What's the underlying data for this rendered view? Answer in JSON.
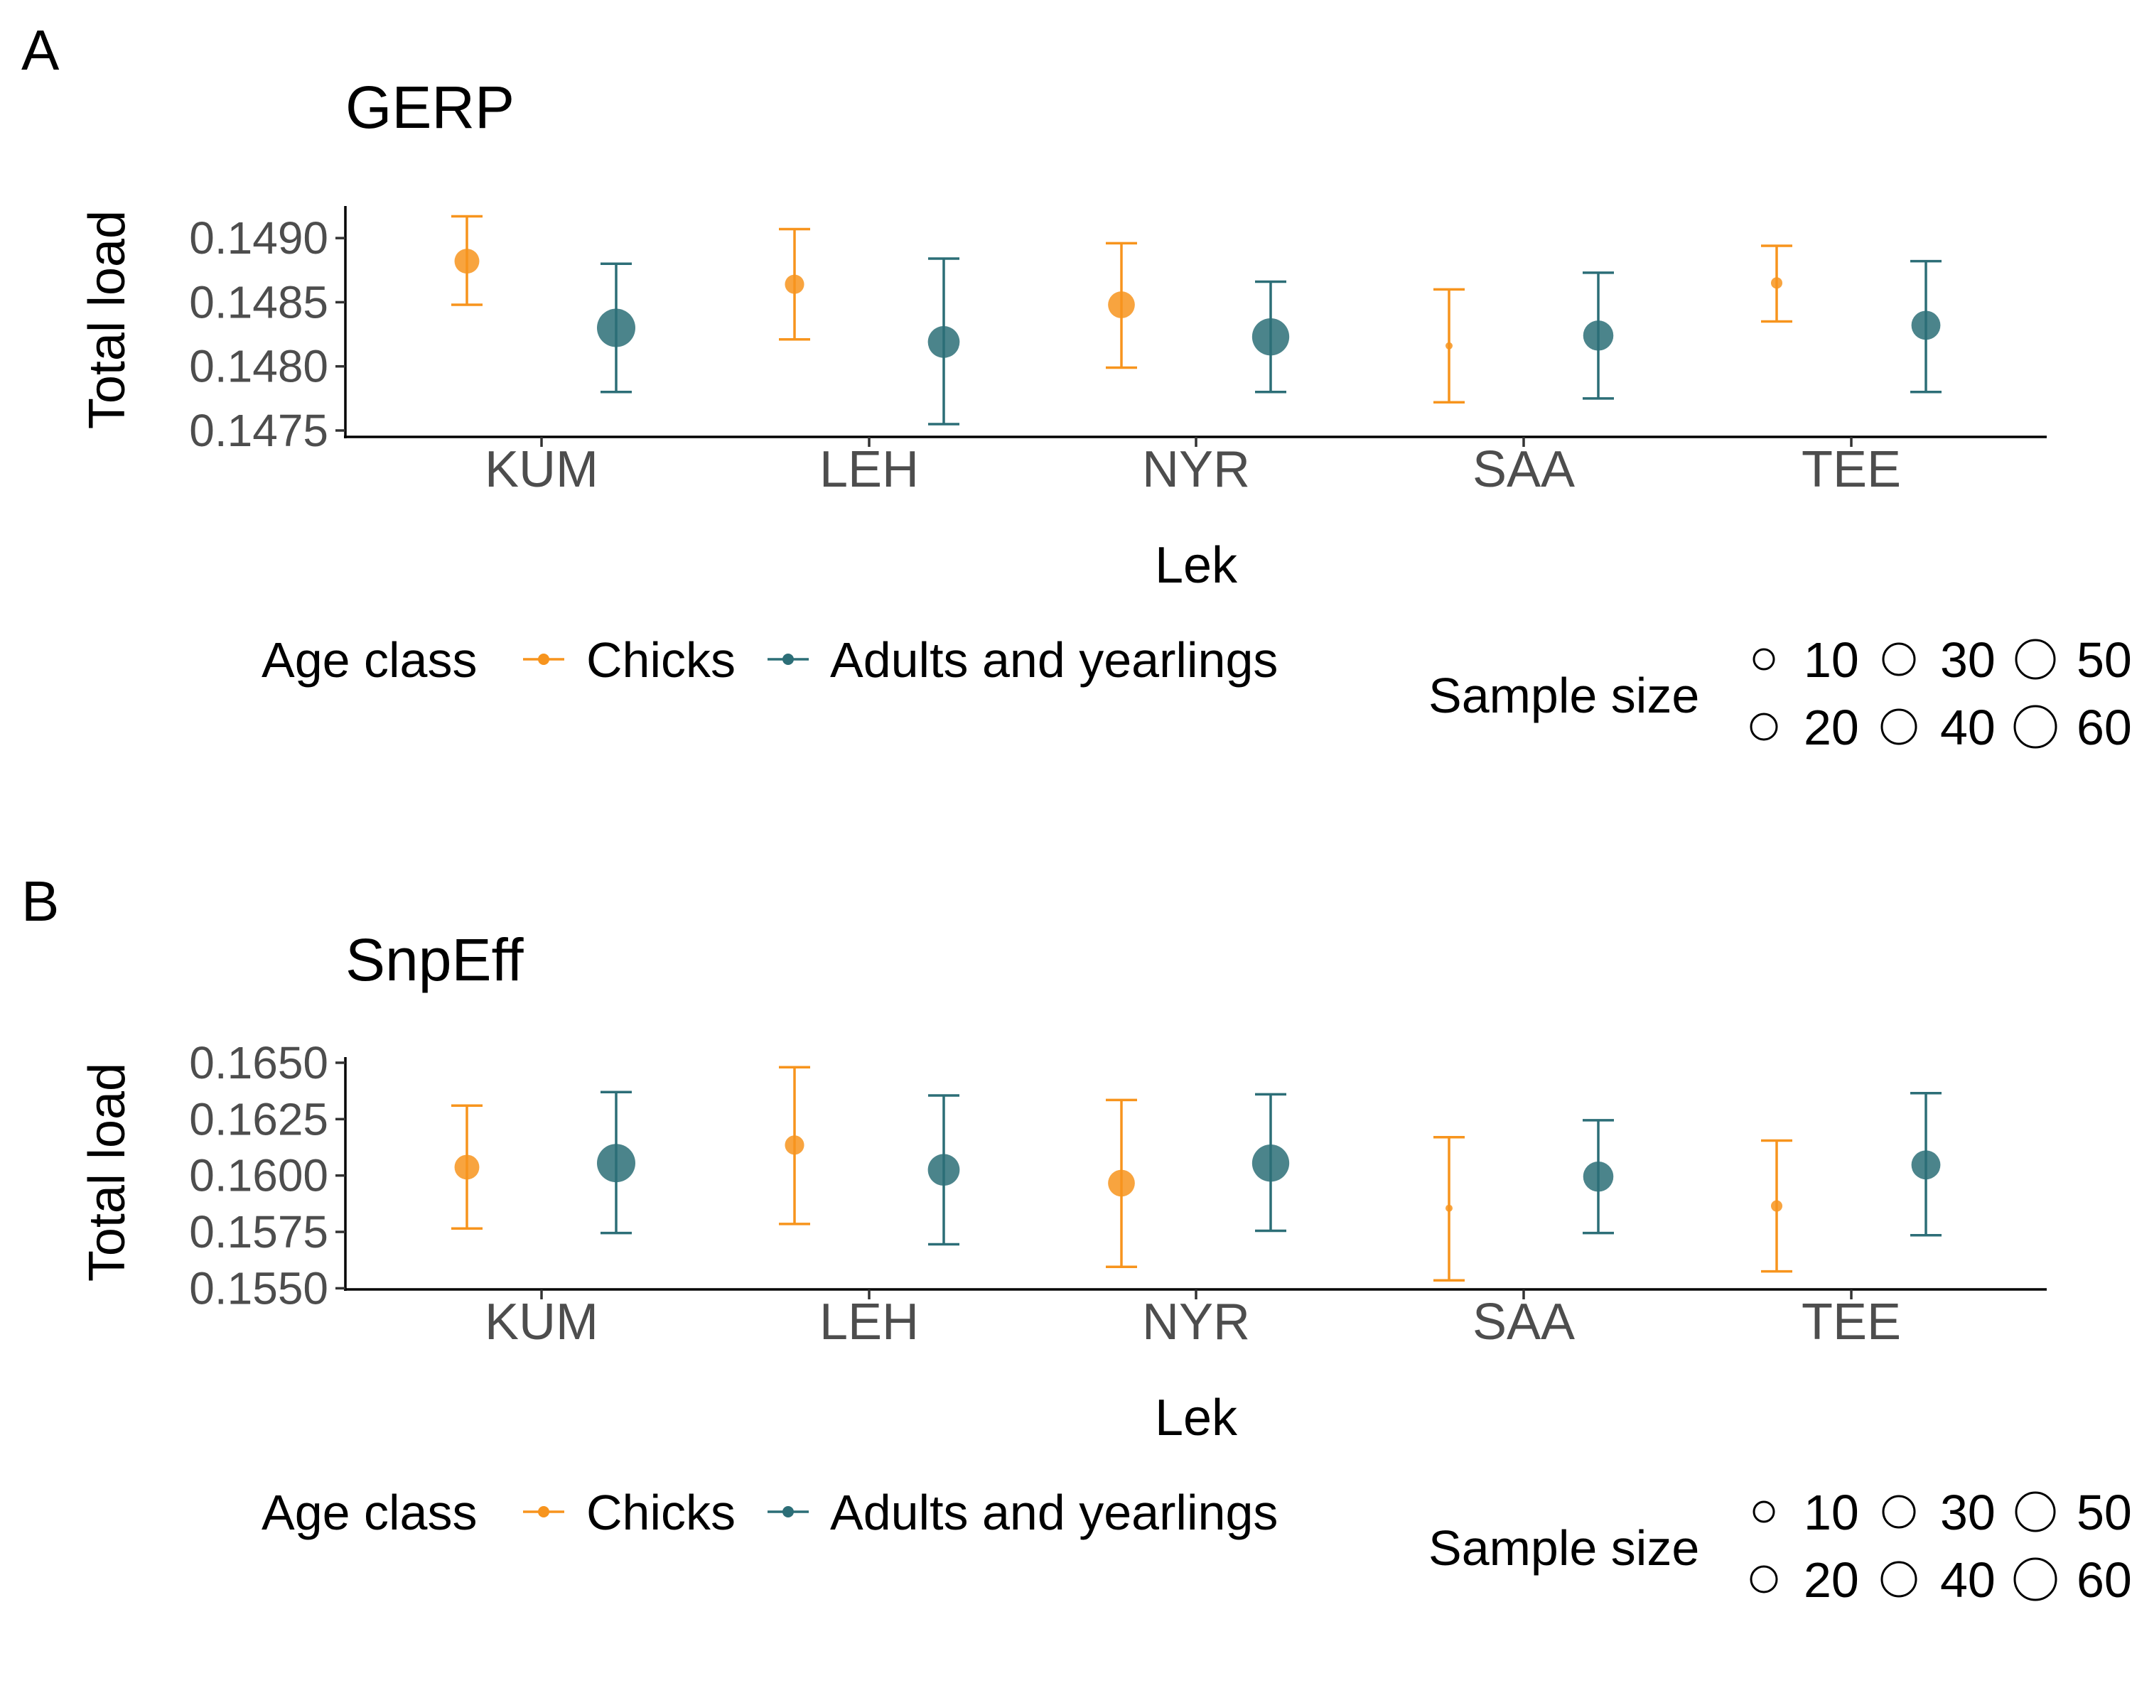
{
  "colors": {
    "chicks": "#F7941D",
    "adults": "#2C6E77"
  },
  "chart_data": [
    {
      "panel": "A",
      "type": "scatter",
      "title": "GERP",
      "xlabel": "Lek",
      "ylabel": "Total load",
      "categories": [
        "KUM",
        "LEH",
        "NYR",
        "SAA",
        "TEE"
      ],
      "ylim": [
        0.14745,
        0.14925
      ],
      "yticks": [
        0.1475,
        0.148,
        0.1485,
        0.149
      ],
      "ytick_labels": [
        "0.1475",
        "0.1480",
        "0.1485",
        "0.1490"
      ],
      "grid": false,
      "legend": {
        "position": "bottom",
        "color_title": "Age class",
        "size_title": "Sample size",
        "size_labels": [
          "10",
          "20",
          "30",
          "40",
          "50",
          "60"
        ],
        "size_values": [
          10,
          20,
          30,
          40,
          50,
          60
        ]
      },
      "series": [
        {
          "name": "Chicks",
          "color_key": "chicks",
          "points": [
            {
              "x": "KUM",
              "y": 0.14882,
              "lower": 0.14848,
              "upper": 0.14917,
              "n": 26
            },
            {
              "x": "LEH",
              "y": 0.14864,
              "lower": 0.14821,
              "upper": 0.14907,
              "n": 17
            },
            {
              "x": "NYR",
              "y": 0.14848,
              "lower": 0.14799,
              "upper": 0.14896,
              "n": 30
            },
            {
              "x": "SAA",
              "y": 0.14816,
              "lower": 0.14772,
              "upper": 0.1486,
              "n": 9
            },
            {
              "x": "TEE",
              "y": 0.14865,
              "lower": 0.14835,
              "upper": 0.14894,
              "n": 10
            }
          ]
        },
        {
          "name": "Adults and yearlings",
          "color_key": "adults",
          "points": [
            {
              "x": "KUM",
              "y": 0.1483,
              "lower": 0.1478,
              "upper": 0.1488,
              "n": 62
            },
            {
              "x": "LEH",
              "y": 0.14819,
              "lower": 0.14755,
              "upper": 0.14884,
              "n": 42
            },
            {
              "x": "NYR",
              "y": 0.14823,
              "lower": 0.1478,
              "upper": 0.14866,
              "n": 58
            },
            {
              "x": "SAA",
              "y": 0.14824,
              "lower": 0.14775,
              "upper": 0.14873,
              "n": 38
            },
            {
              "x": "TEE",
              "y": 0.14832,
              "lower": 0.1478,
              "upper": 0.14882,
              "n": 35
            }
          ]
        }
      ]
    },
    {
      "panel": "B",
      "type": "scatter",
      "title": "SnpEff",
      "xlabel": "Lek",
      "ylabel": "Total load",
      "categories": [
        "KUM",
        "LEH",
        "NYR",
        "SAA",
        "TEE"
      ],
      "ylim": [
        0.15495,
        0.16525
      ],
      "yticks": [
        0.155,
        0.1575,
        0.16,
        0.1625,
        0.165
      ],
      "ytick_labels": [
        "0.1550",
        "0.1575",
        "0.1600",
        "0.1625",
        "0.1650"
      ],
      "grid": false,
      "legend": {
        "position": "bottom",
        "color_title": "Age class",
        "size_title": "Sample size",
        "size_labels": [
          "10",
          "20",
          "30",
          "40",
          "50",
          "60"
        ],
        "size_values": [
          10,
          20,
          30,
          40,
          50,
          60
        ]
      },
      "series": [
        {
          "name": "Chicks",
          "color_key": "chicks",
          "points": [
            {
              "x": "KUM",
              "y": 0.16037,
              "lower": 0.15765,
              "upper": 0.1631,
              "n": 26
            },
            {
              "x": "LEH",
              "y": 0.16135,
              "lower": 0.15785,
              "upper": 0.1648,
              "n": 17
            },
            {
              "x": "NYR",
              "y": 0.15966,
              "lower": 0.15595,
              "upper": 0.16335,
              "n": 30
            },
            {
              "x": "SAA",
              "y": 0.15855,
              "lower": 0.15535,
              "upper": 0.1617,
              "n": 9
            },
            {
              "x": "TEE",
              "y": 0.15865,
              "lower": 0.15575,
              "upper": 0.16155,
              "n": 10
            }
          ]
        },
        {
          "name": "Adults and yearlings",
          "color_key": "adults",
          "points": [
            {
              "x": "KUM",
              "y": 0.16055,
              "lower": 0.15745,
              "upper": 0.1637,
              "n": 62
            },
            {
              "x": "LEH",
              "y": 0.16025,
              "lower": 0.15695,
              "upper": 0.16355,
              "n": 42
            },
            {
              "x": "NYR",
              "y": 0.16055,
              "lower": 0.15755,
              "upper": 0.1636,
              "n": 58
            },
            {
              "x": "SAA",
              "y": 0.15995,
              "lower": 0.15745,
              "upper": 0.16245,
              "n": 38
            },
            {
              "x": "TEE",
              "y": 0.16047,
              "lower": 0.15735,
              "upper": 0.16365,
              "n": 35
            }
          ]
        }
      ]
    }
  ]
}
